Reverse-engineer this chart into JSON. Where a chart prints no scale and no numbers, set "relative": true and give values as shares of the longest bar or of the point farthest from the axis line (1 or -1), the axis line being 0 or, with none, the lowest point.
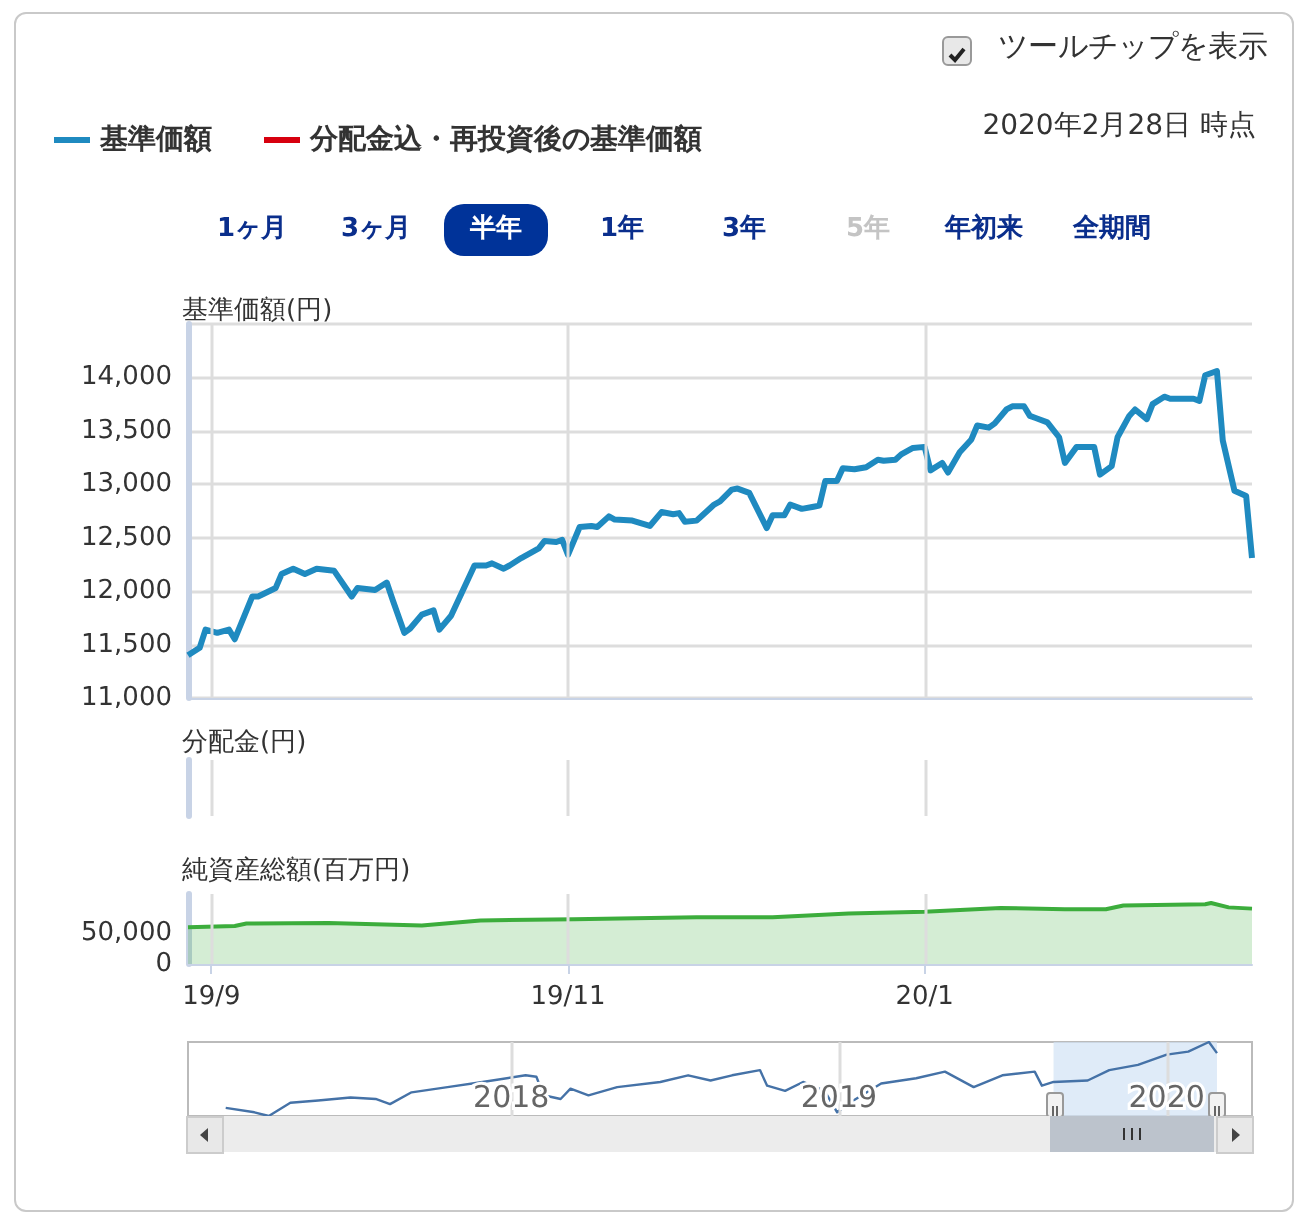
{
  "chart_data": [
    {
      "type": "line",
      "title": "基準価額(円)",
      "legend": "top left",
      "grid": true,
      "tick_labels": "y",
      "marker": "none",
      "annotations": [
        "2020年2月28日 時点",
        "ツールチップを表示",
        "1ヶ月",
        "3ヶ月",
        "半年",
        "1年",
        "3年",
        "5年",
        "年初来",
        "全期間"
      ],
      "xlim": [
        "2019-08-28",
        "2020-02-26"
      ],
      "xticks": [
        {
          "value": "2019-09-01",
          "label": null
        },
        {
          "value": "2019-11-01",
          "label": null
        },
        {
          "value": "2020-01-01",
          "label": null
        }
      ],
      "ylim": [
        11000,
        14500
      ],
      "yticks": [
        {
          "value": 11000,
          "label": "11,000"
        },
        {
          "value": 11500,
          "label": "11,500"
        },
        {
          "value": 12000,
          "label": "12,000"
        },
        {
          "value": 12500,
          "label": "12,500"
        },
        {
          "value": 13000,
          "label": "13,000"
        },
        {
          "value": 13500,
          "label": "13,500"
        },
        {
          "value": 14000,
          "label": "14,000"
        },
        {
          "value": 14500,
          "label": null
        }
      ],
      "x": [
        "2019-08-28",
        "2019-08-30",
        "2019-08-31",
        "2019-09-02",
        "2019-09-04",
        "2019-09-05",
        "2019-09-08",
        "2019-09-09",
        "2019-09-12",
        "2019-09-13",
        "2019-09-15",
        "2019-09-17",
        "2019-09-19",
        "2019-09-22",
        "2019-09-25",
        "2019-09-26",
        "2019-09-29",
        "2019-10-01",
        "2019-10-02",
        "2019-10-04",
        "2019-10-05",
        "2019-10-07",
        "2019-10-09",
        "2019-10-10",
        "2019-10-12",
        "2019-10-16",
        "2019-10-18",
        "2019-10-19",
        "2019-10-21",
        "2019-10-22",
        "2019-10-24",
        "2019-10-27",
        "2019-10-28",
        "2019-10-30",
        "2019-10-31",
        "2019-11-01",
        "2019-11-03",
        "2019-11-05",
        "2019-11-06",
        "2019-11-08",
        "2019-11-09",
        "2019-11-12",
        "2019-11-15",
        "2019-11-17",
        "2019-11-19",
        "2019-11-20",
        "2019-11-21",
        "2019-11-23",
        "2019-11-24",
        "2019-11-26",
        "2019-11-27",
        "2019-11-29",
        "2019-11-30",
        "2019-12-02",
        "2019-12-05",
        "2019-12-06",
        "2019-12-08",
        "2019-12-09",
        "2019-12-11",
        "2019-12-13",
        "2019-12-14",
        "2019-12-15",
        "2019-12-17",
        "2019-12-18",
        "2019-12-20",
        "2019-12-22",
        "2019-12-24",
        "2019-12-25",
        "2019-12-27",
        "2019-12-28",
        "2019-12-30",
        "2020-01-01",
        "2020-01-02",
        "2020-01-04",
        "2020-01-05",
        "2020-01-07",
        "2020-01-09",
        "2020-01-10",
        "2020-01-12",
        "2020-01-13",
        "2020-01-15",
        "2020-01-16",
        "2020-01-18",
        "2020-01-19",
        "2020-01-20",
        "2020-01-22",
        "2020-01-24",
        "2020-01-25",
        "2020-01-27",
        "2020-01-28",
        "2020-01-30",
        "2020-01-31",
        "2020-02-02",
        "2020-02-03",
        "2020-02-05",
        "2020-02-06",
        "2020-02-08",
        "2020-02-09",
        "2020-02-11",
        "2020-02-12",
        "2020-02-14",
        "2020-02-16",
        "2020-02-17",
        "2020-02-18",
        "2020-02-20",
        "2020-02-21",
        "2020-02-23",
        "2020-02-25",
        "2020-02-26"
      ],
      "series": [
        {
          "name": "基準価額",
          "color": "#1f8ac0",
          "values": [
            11400,
            11470,
            11640,
            11610,
            11640,
            11550,
            11950,
            11950,
            12030,
            12160,
            12210,
            12160,
            12210,
            12190,
            11950,
            12030,
            12010,
            12080,
            11920,
            11610,
            11650,
            11780,
            11820,
            11640,
            11770,
            12240,
            12240,
            12260,
            12210,
            12240,
            12310,
            12400,
            12470,
            12460,
            12480,
            12340,
            12600,
            12610,
            12600,
            12700,
            12670,
            12660,
            12610,
            12740,
            12720,
            12730,
            12650,
            12660,
            12710,
            12810,
            12840,
            12950,
            12960,
            12920,
            12590,
            12710,
            12710,
            12810,
            12770,
            12790,
            12800,
            13030,
            13030,
            13150,
            13140,
            13160,
            13230,
            13220,
            13230,
            13280,
            13340,
            13350,
            13130,
            13200,
            13110,
            13300,
            13420,
            13550,
            13530,
            13570,
            13700,
            13730,
            13730,
            13640,
            13620,
            13580,
            13440,
            13200,
            13350,
            13350,
            13350,
            13090,
            13170,
            13440,
            13640,
            13700,
            13610,
            13750,
            13820,
            13800,
            13800,
            13800,
            13780,
            14020,
            14060,
            13410,
            12940,
            12890,
            12310
          ]
        },
        {
          "name": "分配金込・再投資後の基準価額",
          "color": "#d7000f",
          "values": [
            null,
            null,
            null,
            null,
            null,
            null,
            null,
            null,
            null,
            null,
            null,
            null,
            null,
            null,
            null,
            null,
            null,
            null,
            null,
            null,
            null,
            null,
            null,
            null,
            null,
            null,
            null,
            null,
            null,
            null,
            null,
            null,
            null,
            null,
            null,
            null,
            null,
            null,
            null,
            null,
            null,
            null,
            null,
            null,
            null,
            null,
            null,
            null,
            null,
            null,
            null,
            null,
            null,
            null,
            null,
            null,
            null,
            null,
            null,
            null,
            null,
            null,
            null,
            null,
            null,
            null,
            null,
            null,
            null,
            null,
            null,
            null,
            null,
            null,
            null,
            null,
            null,
            null,
            null,
            null,
            null,
            null,
            null,
            null,
            null,
            null,
            null,
            null,
            null,
            null,
            null,
            null,
            null,
            null,
            null,
            null,
            null,
            null,
            null,
            null,
            null,
            null,
            null,
            null,
            null,
            null,
            null,
            null,
            null
          ]
        }
      ]
    },
    {
      "type": "other",
      "title": "分配金(円)"
    },
    {
      "type": "area",
      "title": "純資産総額(百万円)",
      "grid": "x",
      "marker": "none",
      "color": "#3cad3c",
      "xlim": [
        "2019-08-28",
        "2020-02-26"
      ],
      "xticks": [
        {
          "value": "2019-09-01",
          "label": "19/9"
        },
        {
          "value": "2019-11-01",
          "label": "19/11"
        },
        {
          "value": "2020-01-01",
          "label": "20/1"
        }
      ],
      "ylim": [
        0,
        112500
      ],
      "yticks": [
        0,
        {
          "value": 50000,
          "label": "50,000"
        }
      ],
      "x": [
        "2019-08-28",
        "2019-09-05",
        "2019-09-07",
        "2019-09-21",
        "2019-10-07",
        "2019-10-17",
        "2019-11-02",
        "2019-11-23",
        "2019-12-06",
        "2019-12-19",
        "2020-01-01",
        "2020-01-14",
        "2020-01-25",
        "2020-02-01",
        "2020-02-04",
        "2020-02-18",
        "2020-02-19",
        "2020-02-22",
        "2020-02-26"
      ],
      "values": [
        59000,
        61000,
        65000,
        66000,
        62000,
        70000,
        72000,
        75000,
        75000,
        81000,
        84000,
        90000,
        88000,
        88000,
        94000,
        96000,
        98000,
        91000,
        89000
      ]
    },
    {
      "type": "line",
      "relative": true,
      "marker": "none",
      "grid": "x",
      "tick_labels": "x",
      "color": "#4572a7",
      "xlim": [
        "2017-01-06",
        "2020-04-05"
      ],
      "xticks": [
        {
          "value": "2018",
          "label": "2018"
        },
        {
          "value": "2019",
          "label": "2019"
        },
        {
          "value": "2020",
          "label": "2020"
        }
      ],
      "bands": [
        {
          "axis": "x",
          "from": "2019-08-28",
          "to": "2020-02-26",
          "color": "#d2e2f5"
        }
      ],
      "x": [
        "2017-02-17",
        "2017-03-21",
        "2017-04-06",
        "2017-04-30",
        "2017-05-31",
        "2017-07-06",
        "2017-08-03",
        "2017-08-19",
        "2017-09-12",
        "2017-10-22",
        "2017-11-30",
        "2018-01-17",
        "2018-01-29",
        "2018-02-06",
        "2018-02-25",
        "2018-03-08",
        "2018-03-28",
        "2018-04-29",
        "2018-06-16",
        "2018-07-17",
        "2018-08-11",
        "2018-09-04",
        "2018-10-05",
        "2018-10-13",
        "2018-11-02",
        "2018-11-22",
        "2018-12-16",
        "2018-12-30",
        "2019-01-13",
        "2019-02-17",
        "2019-03-28",
        "2019-04-29",
        "2019-05-31",
        "2019-07-02",
        "2019-08-07",
        "2019-08-15",
        "2019-08-28",
        "2019-10-05",
        "2019-10-29",
        "2019-11-30",
        "2020-01-01",
        "2020-01-25",
        "2020-02-17",
        "2020-02-26"
      ],
      "values": [
        0.11,
        0.05,
        0,
        0.18,
        0.21,
        0.25,
        0.23,
        0.16,
        0.32,
        0.39,
        0.46,
        0.55,
        0.53,
        0.28,
        0.23,
        0.37,
        0.28,
        0.39,
        0.46,
        0.55,
        0.48,
        0.55,
        0.62,
        0.41,
        0.34,
        0.46,
        0.34,
        0.05,
        0.18,
        0.44,
        0.51,
        0.6,
        0.39,
        0.55,
        0.6,
        0.41,
        0.46,
        0.48,
        0.62,
        0.69,
        0.83,
        0.87,
        1,
        0.85
      ]
    }
  ]
}
